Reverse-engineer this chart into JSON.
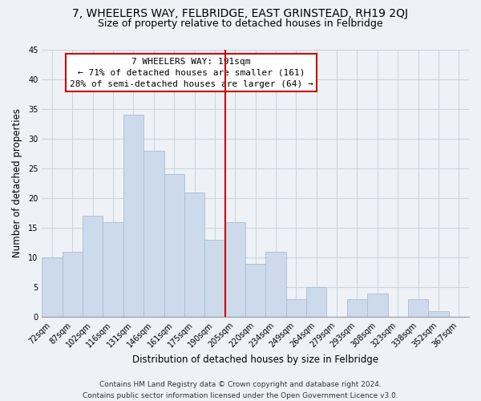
{
  "title": "7, WHEELERS WAY, FELBRIDGE, EAST GRINSTEAD, RH19 2QJ",
  "subtitle": "Size of property relative to detached houses in Felbridge",
  "xlabel": "Distribution of detached houses by size in Felbridge",
  "ylabel": "Number of detached properties",
  "bar_labels": [
    "72sqm",
    "87sqm",
    "102sqm",
    "116sqm",
    "131sqm",
    "146sqm",
    "161sqm",
    "175sqm",
    "190sqm",
    "205sqm",
    "220sqm",
    "234sqm",
    "249sqm",
    "264sqm",
    "279sqm",
    "293sqm",
    "308sqm",
    "323sqm",
    "338sqm",
    "352sqm",
    "367sqm"
  ],
  "bar_values": [
    10,
    11,
    17,
    16,
    34,
    28,
    24,
    21,
    13,
    16,
    9,
    11,
    3,
    5,
    0,
    3,
    4,
    0,
    3,
    1,
    0
  ],
  "bar_color": "#ccdaeb",
  "bar_edge_color": "#a8bdd4",
  "vline_x_index": 8,
  "vline_color": "#cc0000",
  "annotation_title": "7 WHEELERS WAY: 191sqm",
  "annotation_line1": "← 71% of detached houses are smaller (161)",
  "annotation_line2": "28% of semi-detached houses are larger (64) →",
  "annotation_box_facecolor": "#ffffff",
  "annotation_box_edgecolor": "#cc0000",
  "ylim": [
    0,
    45
  ],
  "yticks": [
    0,
    5,
    10,
    15,
    20,
    25,
    30,
    35,
    40,
    45
  ],
  "grid_color": "#ccd5de",
  "background_color": "#eef2f7",
  "footer_line1": "Contains HM Land Registry data © Crown copyright and database right 2024.",
  "footer_line2": "Contains public sector information licensed under the Open Government Licence v3.0.",
  "title_fontsize": 10,
  "subtitle_fontsize": 9,
  "xlabel_fontsize": 8.5,
  "ylabel_fontsize": 8.5,
  "tick_fontsize": 7,
  "annotation_fontsize": 8,
  "footer_fontsize": 6.5
}
